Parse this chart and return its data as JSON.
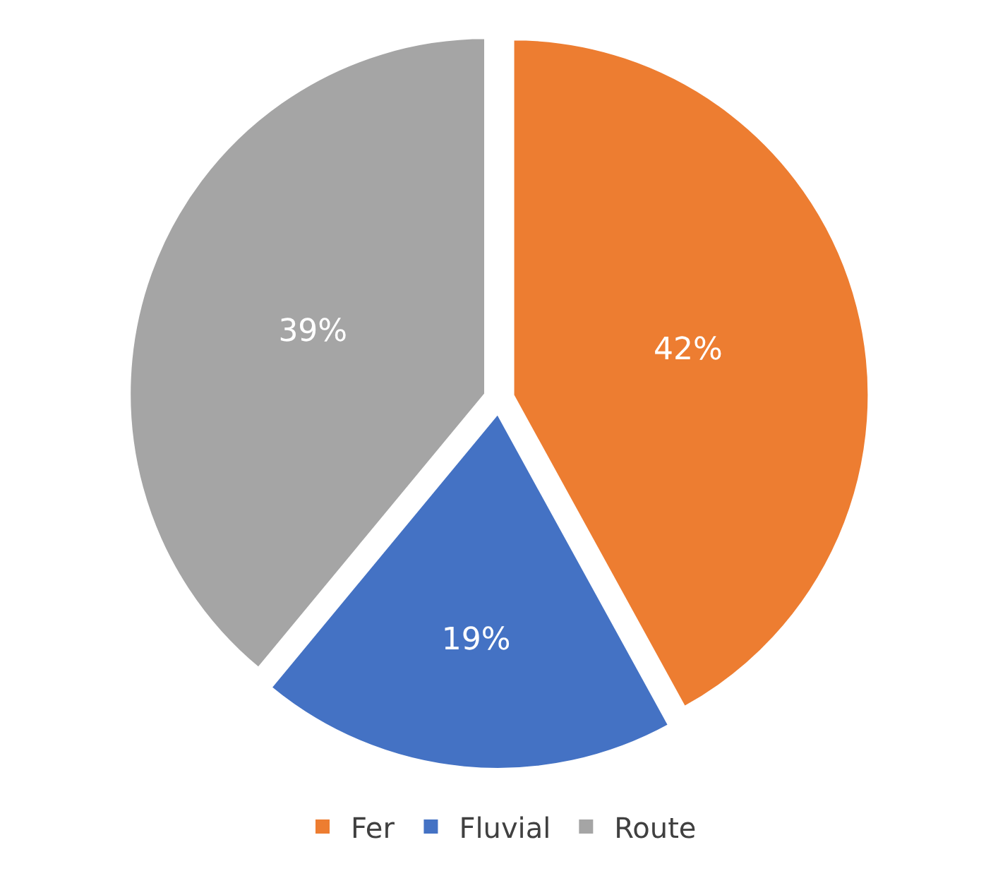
{
  "chart_data": {
    "type": "pie",
    "categories": [
      "Fer",
      "Fluvial",
      "Route"
    ],
    "values": [
      42,
      19,
      39
    ],
    "colors": [
      "#ed7d31",
      "#4472c4",
      "#a5a5a5"
    ],
    "value_labels": [
      "42%",
      "19%",
      "39%"
    ],
    "legend": "bottom"
  }
}
